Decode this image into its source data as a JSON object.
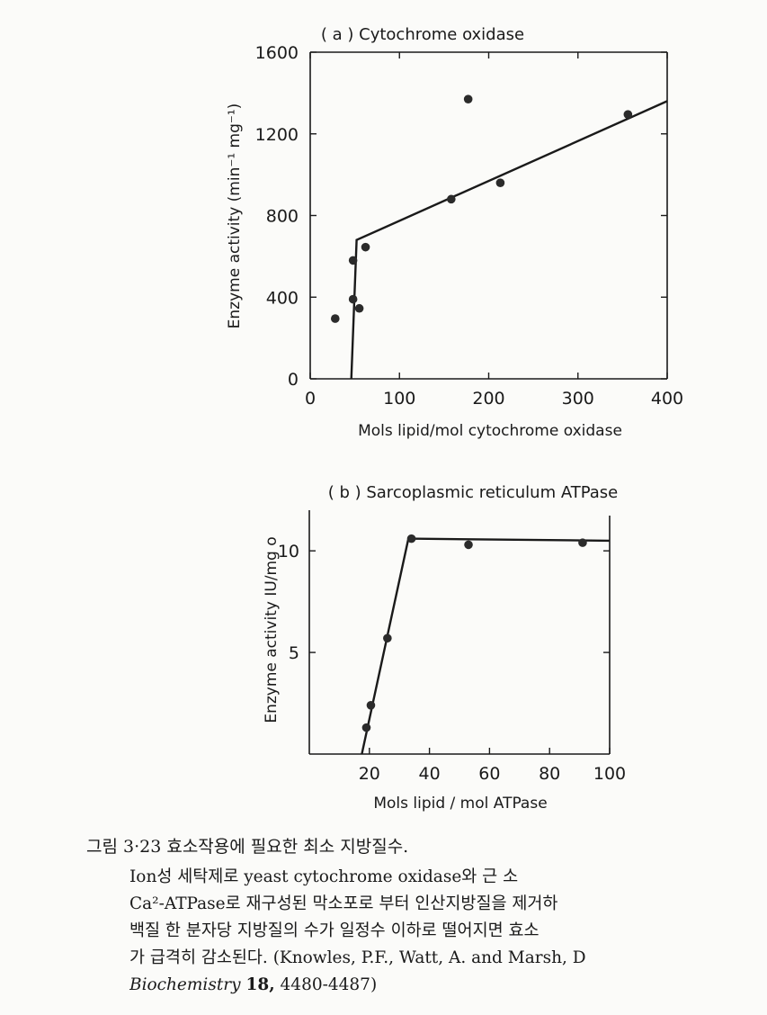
{
  "chart_data": [
    {
      "type": "scatter",
      "title": "( a ) Cytochrome oxidase",
      "xlabel": "Mols lipid/mol cytochrome oxidase",
      "ylabel": "Enzyme activity (min⁻¹ mg⁻¹)",
      "xlim": [
        0,
        400
      ],
      "ylim": [
        0,
        1600
      ],
      "xticks": [
        0,
        100,
        200,
        300,
        400
      ],
      "yticks": [
        0,
        400,
        800,
        1200,
        1600
      ],
      "xtick_labels": [
        "0",
        "100",
        "200",
        "300",
        "400"
      ],
      "ytick_labels": [
        "0",
        "400",
        "800",
        "1200",
        "1600"
      ],
      "points": [
        {
          "x": 28,
          "y": 295
        },
        {
          "x": 48,
          "y": 580
        },
        {
          "x": 48,
          "y": 390
        },
        {
          "x": 55,
          "y": 345
        },
        {
          "x": 62,
          "y": 645
        },
        {
          "x": 158,
          "y": 880
        },
        {
          "x": 177,
          "y": 1370
        },
        {
          "x": 213,
          "y": 960
        },
        {
          "x": 356,
          "y": 1295
        }
      ],
      "fit_line": [
        {
          "x": 46,
          "y": 0
        },
        {
          "x": 52,
          "y": 680
        },
        {
          "x": 400,
          "y": 1360
        }
      ],
      "grid": false
    },
    {
      "type": "scatter",
      "title": "( b ) Sarcoplasmic reticulum ATPase",
      "xlabel": "Mols lipid / mol ATPase",
      "ylabel": "Enzyme activity IU/mg o",
      "xlim": [
        0,
        100
      ],
      "ylim": [
        0,
        12
      ],
      "xticks": [
        20,
        40,
        60,
        80,
        100
      ],
      "yticks": [
        5,
        10
      ],
      "xtick_labels": [
        "20",
        "40",
        "60",
        "80",
        "100"
      ],
      "ytick_labels": [
        "5",
        "10"
      ],
      "points": [
        {
          "x": 19,
          "y": 1.3
        },
        {
          "x": 20.5,
          "y": 2.4
        },
        {
          "x": 26,
          "y": 5.7
        },
        {
          "x": 34,
          "y": 10.6
        },
        {
          "x": 53,
          "y": 10.3
        },
        {
          "x": 91,
          "y": 10.4
        }
      ],
      "fit_line": [
        {
          "x": 17.5,
          "y": 0
        },
        {
          "x": 33,
          "y": 10.6
        },
        {
          "x": 100,
          "y": 10.5
        }
      ],
      "grid": false
    }
  ],
  "caption": {
    "heading": "그림 3·23  효소작용에 필요한 최소 지방질수.",
    "line1": "Ion성  세탁제로  yeast cytochrome oxidase와  근  소",
    "line2": "Ca²-ATPase로 재구성된 막소포로 부터 인산지방질을 제거하",
    "line3": "백질 한 분자당 지방질의 수가 일정수 이하로 떨어지면 효소",
    "line4_text": "가  급격히  감소된다.",
    "line4_ref": "(Knowles, P.F., Watt, A. and Marsh, D",
    "line5_journal": "Biochemistry",
    "line5_volume": "18,",
    "line5_pages": "4480-4487)"
  }
}
